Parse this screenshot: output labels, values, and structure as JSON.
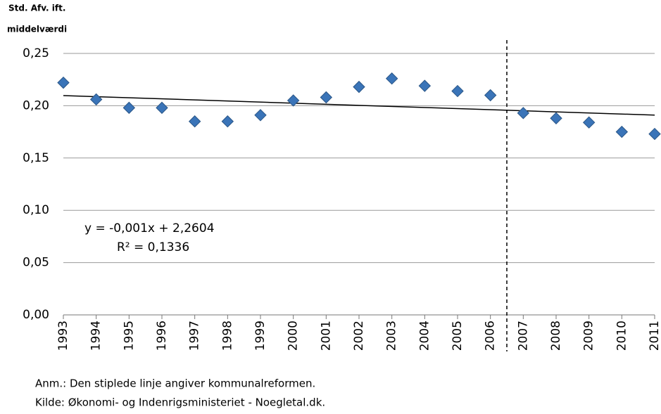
{
  "chart_data": {
    "type": "scatter",
    "y_label": [
      "Std. Afv. ift.",
      "middelværdi"
    ],
    "categories": [
      "1993",
      "1994",
      "1995",
      "1996",
      "1997",
      "1998",
      "1999",
      "2000",
      "2001",
      "2002",
      "2003",
      "2004",
      "2005",
      "2006",
      "2007",
      "2008",
      "2009",
      "2010",
      "2011"
    ],
    "series": [
      {
        "color": "#3a74b8",
        "values": [
          0.222,
          0.206,
          0.198,
          0.198,
          0.185,
          0.185,
          0.191,
          0.205,
          0.208,
          0.218,
          0.226,
          0.219,
          0.214,
          0.21,
          0.193,
          0.188,
          0.184,
          0.175,
          0.173
        ]
      }
    ],
    "trendline": {
      "color": "#000000",
      "values": [
        0.2097,
        0.191
      ]
    },
    "divider_after": "2006",
    "annotations": [
      "y = -0,001x + 2,2604",
      "R² = 0,1336"
    ],
    "ylim": [
      0,
      0.25
    ],
    "yticks": [
      {
        "value": 0,
        "label": "0,00"
      },
      {
        "value": 0.05,
        "label": "0,05"
      },
      {
        "value": 0.1,
        "label": "0,10"
      },
      {
        "value": 0.15,
        "label": "0,15"
      },
      {
        "value": 0.2,
        "label": "0,20"
      },
      {
        "value": 0.25,
        "label": "0,25"
      }
    ],
    "grid": true,
    "notes": [
      "Anm.: Den stiplede linje angiver kommunalreformen.",
      "Kilde: Økonomi- og Indenrigsministeriet - Noegletal.dk."
    ]
  }
}
